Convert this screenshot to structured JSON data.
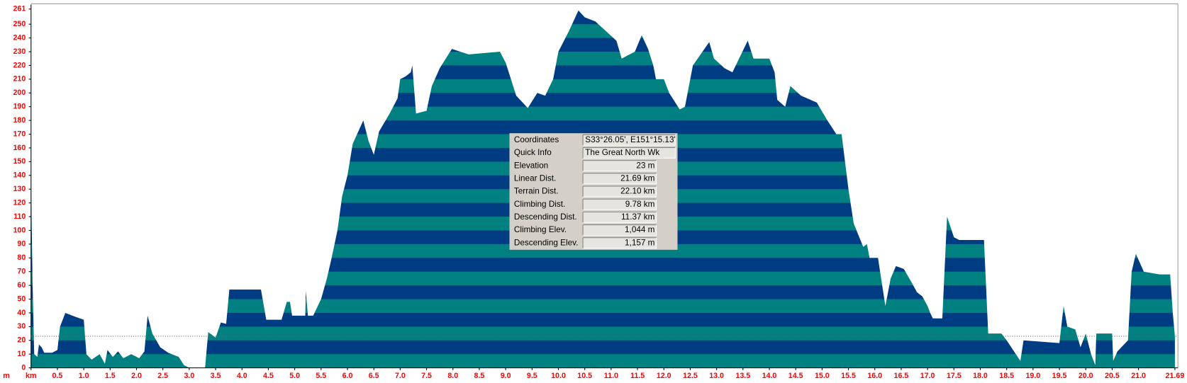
{
  "chart_data": {
    "type": "area",
    "ylabel": "m",
    "x": [
      0,
      0.03,
      0.06,
      0.12,
      0.15,
      0.2,
      0.25,
      0.4,
      0.5,
      0.55,
      0.65,
      0.85,
      1.0,
      1.05,
      1.15,
      1.3,
      1.4,
      1.45,
      1.55,
      1.65,
      1.75,
      1.9,
      2.05,
      2.15,
      2.21,
      2.3,
      2.45,
      2.6,
      2.8,
      2.9,
      3.0,
      3.3,
      3.36,
      3.5,
      3.6,
      3.7,
      3.76,
      4.36,
      4.46,
      4.75,
      4.85,
      4.91,
      4.95,
      5.2,
      5.21,
      5.25,
      5.35,
      5.5,
      5.61,
      5.7,
      5.81,
      5.9,
      6.0,
      6.1,
      6.3,
      6.4,
      6.5,
      6.6,
      6.8,
      6.95,
      7.0,
      7.1,
      7.2,
      7.23,
      7.3,
      7.5,
      7.6,
      7.75,
      7.98,
      8.3,
      8.89,
      9.0,
      9.2,
      9.42,
      9.6,
      9.75,
      9.9,
      10.0,
      10.2,
      10.38,
      10.5,
      10.7,
      10.9,
      11.1,
      11.2,
      11.45,
      11.58,
      11.7,
      11.8,
      11.85,
      12.0,
      12.1,
      12.3,
      12.4,
      12.55,
      12.86,
      12.95,
      13.15,
      13.3,
      13.59,
      13.7,
      14.0,
      14.1,
      14.15,
      14.3,
      14.4,
      14.6,
      14.9,
      15.1,
      15.27,
      15.37,
      15.5,
      15.6,
      15.78,
      15.85,
      15.9,
      16.06,
      16.2,
      16.3,
      16.4,
      16.55,
      16.7,
      16.8,
      16.9,
      17.0,
      17.05,
      17.1,
      17.28,
      17.37,
      17.5,
      17.6,
      18.07,
      18.15,
      18.4,
      18.5,
      18.76,
      18.82,
      19.5,
      19.58,
      19.65,
      19.8,
      19.9,
      20.0,
      20.1,
      20.18,
      20.2,
      20.5,
      20.52,
      20.6,
      20.8,
      20.87,
      20.95,
      21.1,
      21.4,
      21.6,
      21.65,
      21.69
    ],
    "values": [
      137,
      60,
      10,
      8,
      17,
      15,
      11,
      11,
      13,
      30,
      40,
      37,
      35,
      10,
      6,
      10,
      3,
      13,
      8,
      12,
      7,
      10,
      7,
      12,
      38,
      25,
      15,
      11,
      8,
      2,
      0,
      0,
      26,
      22,
      33,
      32,
      57,
      57,
      35,
      35,
      48,
      48,
      38,
      38,
      56,
      38,
      38,
      50,
      65,
      80,
      100,
      125,
      140,
      163,
      180,
      165,
      155,
      172,
      185,
      196,
      210,
      212,
      215,
      220,
      185,
      187,
      205,
      218,
      232,
      228,
      230,
      222,
      198,
      189,
      200,
      198,
      210,
      230,
      245,
      260,
      255,
      252,
      245,
      238,
      225,
      230,
      242,
      232,
      220,
      210,
      210,
      200,
      188,
      190,
      220,
      237,
      225,
      218,
      215,
      238,
      225,
      225,
      215,
      195,
      190,
      205,
      198,
      193,
      180,
      170,
      170,
      130,
      105,
      88,
      90,
      80,
      80,
      45,
      65,
      74,
      72,
      62,
      55,
      52,
      45,
      40,
      36,
      36,
      110,
      95,
      93,
      93,
      25,
      25,
      20,
      5,
      20,
      18,
      45,
      30,
      28,
      15,
      25,
      10,
      2,
      25,
      25,
      5,
      12,
      20,
      70,
      83,
      70,
      68,
      68,
      40,
      23
    ],
    "band_colors": [
      "#008080",
      "#003c82"
    ],
    "ylim": [
      0,
      261
    ],
    "yticks": [
      0,
      10,
      20,
      30,
      40,
      50,
      60,
      70,
      80,
      90,
      100,
      110,
      120,
      130,
      140,
      150,
      160,
      170,
      180,
      190,
      200,
      210,
      220,
      230,
      240,
      250,
      261
    ],
    "xlim": [
      0,
      21.69
    ],
    "xticks": [
      {
        "value": 0,
        "label": "km"
      },
      0.5,
      {
        "value": 1,
        "label": "1.0"
      },
      1.5,
      {
        "value": 2,
        "label": "2.0"
      },
      2.5,
      {
        "value": 3,
        "label": "3.0"
      },
      3.5,
      {
        "value": 4,
        "label": "4.0"
      },
      4.5,
      {
        "value": 5,
        "label": "5.0"
      },
      5.5,
      {
        "value": 6,
        "label": "6.0"
      },
      6.5,
      {
        "value": 7,
        "label": "7.0"
      },
      7.5,
      {
        "value": 8,
        "label": "8.0"
      },
      8.5,
      {
        "value": 9,
        "label": "9.0"
      },
      9.5,
      {
        "value": 10,
        "label": "10.0"
      },
      10.5,
      {
        "value": 11,
        "label": "11.0"
      },
      11.5,
      {
        "value": 12,
        "label": "12.0"
      },
      12.5,
      {
        "value": 13,
        "label": "13.0"
      },
      13.5,
      {
        "value": 14,
        "label": "14.0"
      },
      14.5,
      {
        "value": 15,
        "label": "15.0"
      },
      15.5,
      {
        "value": 16,
        "label": "16.0"
      },
      16.5,
      {
        "value": 17,
        "label": "17.0"
      },
      17.5,
      {
        "value": 18,
        "label": "18.0"
      },
      18.5,
      {
        "value": 19,
        "label": "19.0"
      },
      19.5,
      {
        "value": 20,
        "label": "20.0"
      },
      20.5,
      {
        "value": 21,
        "label": "21.0"
      },
      21.69
    ]
  },
  "info": {
    "rows": [
      {
        "label": "Coordinates",
        "value": "S33°26.05', E151°15.13'"
      },
      {
        "label": "Quick Info",
        "value": "The Great North Wk"
      },
      {
        "label": "Elevation",
        "value": {
          "value": 23,
          "label": "23 m"
        }
      },
      {
        "label": "Linear Dist.",
        "value": "21.69 km"
      },
      {
        "label": "Terrain Dist.",
        "value": "22.10 km"
      },
      {
        "label": "Climbing Dist.",
        "value": "9.78 km"
      },
      {
        "label": "Descending Dist.",
        "value": "11.37 km"
      },
      {
        "label": "Climbing Elev.",
        "value": "1,044 m"
      },
      {
        "label": "Descending Elev.",
        "value": "1,157 m"
      }
    ]
  }
}
